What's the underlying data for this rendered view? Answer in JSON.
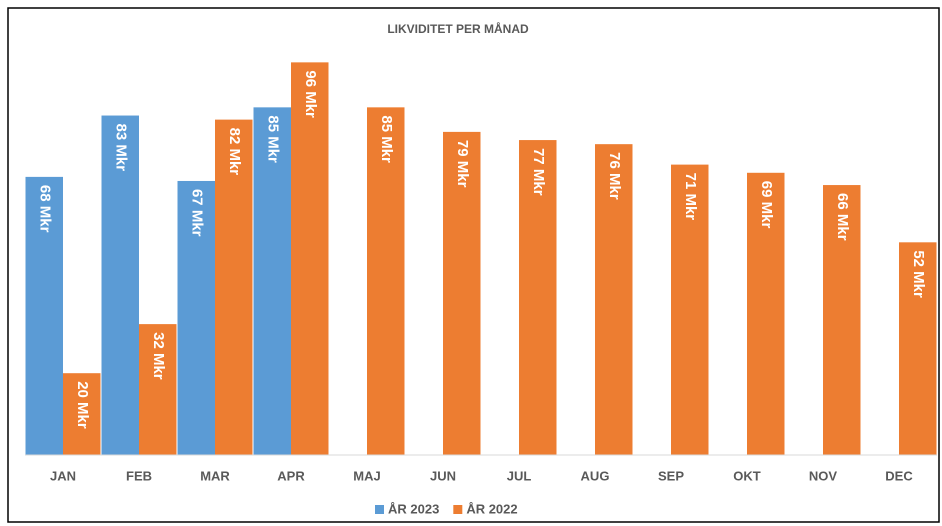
{
  "chart_data": {
    "type": "bar",
    "title": "LIKVIDITET PER MÅNAD",
    "categories": [
      "JAN",
      "FEB",
      "MAR",
      "APR",
      "MAJ",
      "JUN",
      "JUL",
      "AUG",
      "SEP",
      "OKT",
      "NOV",
      "DEC"
    ],
    "series": [
      {
        "name": "ÅR 2023",
        "color": "#5b9bd5",
        "values": [
          68,
          83,
          67,
          85,
          null,
          null,
          null,
          null,
          null,
          null,
          null,
          null
        ],
        "value_labels": [
          "68 Mkr",
          "83 Mkr",
          "67 Mkr",
          "85 Mkr",
          null,
          null,
          null,
          null,
          null,
          null,
          null,
          null
        ]
      },
      {
        "name": "ÅR 2022",
        "color": "#ed7d31",
        "values": [
          20,
          32,
          82,
          96,
          85,
          79,
          77,
          76,
          71,
          69,
          66,
          52
        ],
        "value_labels": [
          "20 Mkr",
          "32 Mkr",
          "82 Mkr",
          "96 Mkr",
          "85 Mkr",
          "79 Mkr",
          "77 Mkr",
          "76 Mkr",
          "71 Mkr",
          "69 Mkr",
          "66 Mkr",
          "52 Mkr"
        ]
      }
    ],
    "ylim": [
      0,
      100
    ],
    "legend": "bottom"
  }
}
